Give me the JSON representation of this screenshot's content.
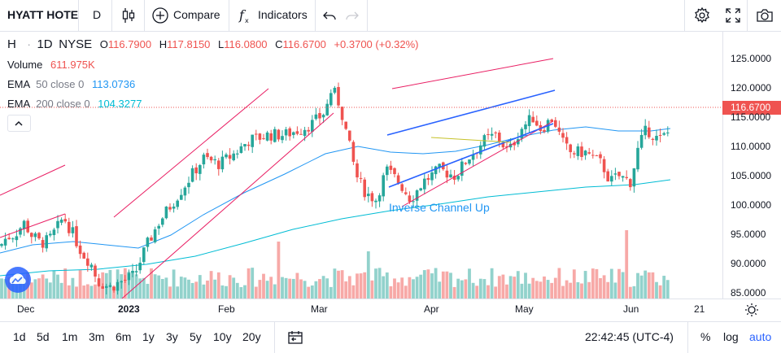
{
  "toolbar": {
    "symbol": "HYATT HOTE",
    "interval": "D",
    "compare_label": "Compare",
    "indicators_label": "Indicators"
  },
  "legend": {
    "ticker": "H",
    "interval": "1D",
    "exchange": "NYSE",
    "open_label": "O",
    "open": "116.7900",
    "high_label": "H",
    "high": "117.8150",
    "low_label": "L",
    "low": "116.0800",
    "close_label": "C",
    "close": "116.6700",
    "change": "+0.3700 (+0.32%)",
    "volume_label": "Volume",
    "volume": "611.975K",
    "ema50_label": "EMA",
    "ema50_params": "50 close 0",
    "ema50_value": "113.0736",
    "ema200_label": "EMA",
    "ema200_params": "200 close 0",
    "ema200_value": "104.3277"
  },
  "annotation": "Inverse Channel Up",
  "price_axis": {
    "ticks": [
      "125.0000",
      "120.0000",
      "115.0000",
      "110.0000",
      "105.0000",
      "100.0000",
      "95.0000",
      "90.0000",
      "85.0000"
    ],
    "last_price": "116.6700"
  },
  "time_axis": {
    "ticks": [
      "Dec",
      "2023",
      "Feb",
      "Mar",
      "Apr",
      "May",
      "Jun",
      "21"
    ]
  },
  "ranges": [
    "1d",
    "5d",
    "1m",
    "3m",
    "6m",
    "1y",
    "3y",
    "5y",
    "10y",
    "20y"
  ],
  "clock": "22:42:45 (UTC-4)",
  "scale_options": {
    "percent": "%",
    "log": "log",
    "auto": "auto"
  },
  "colors": {
    "up": "#26a69a",
    "down": "#ef5350",
    "ema50": "#2196f3",
    "ema200": "#00bcd4",
    "channel": "#e91e63",
    "pattern": "#2962ff",
    "accent": "#2962ff"
  },
  "icons": {
    "candles": "candlestick-icon",
    "compare": "plus-circle-icon",
    "indicators": "fx-icon",
    "undo": "undo-icon",
    "redo": "redo-icon",
    "settings": "gear-icon",
    "fullscreen": "fullscreen-icon",
    "snapshot": "camera-icon",
    "collapse": "chevron-up-icon",
    "logo": "cloud-logo-icon",
    "date_range": "calendar-icon",
    "time_axis_settings": "sun-gear-icon"
  }
}
